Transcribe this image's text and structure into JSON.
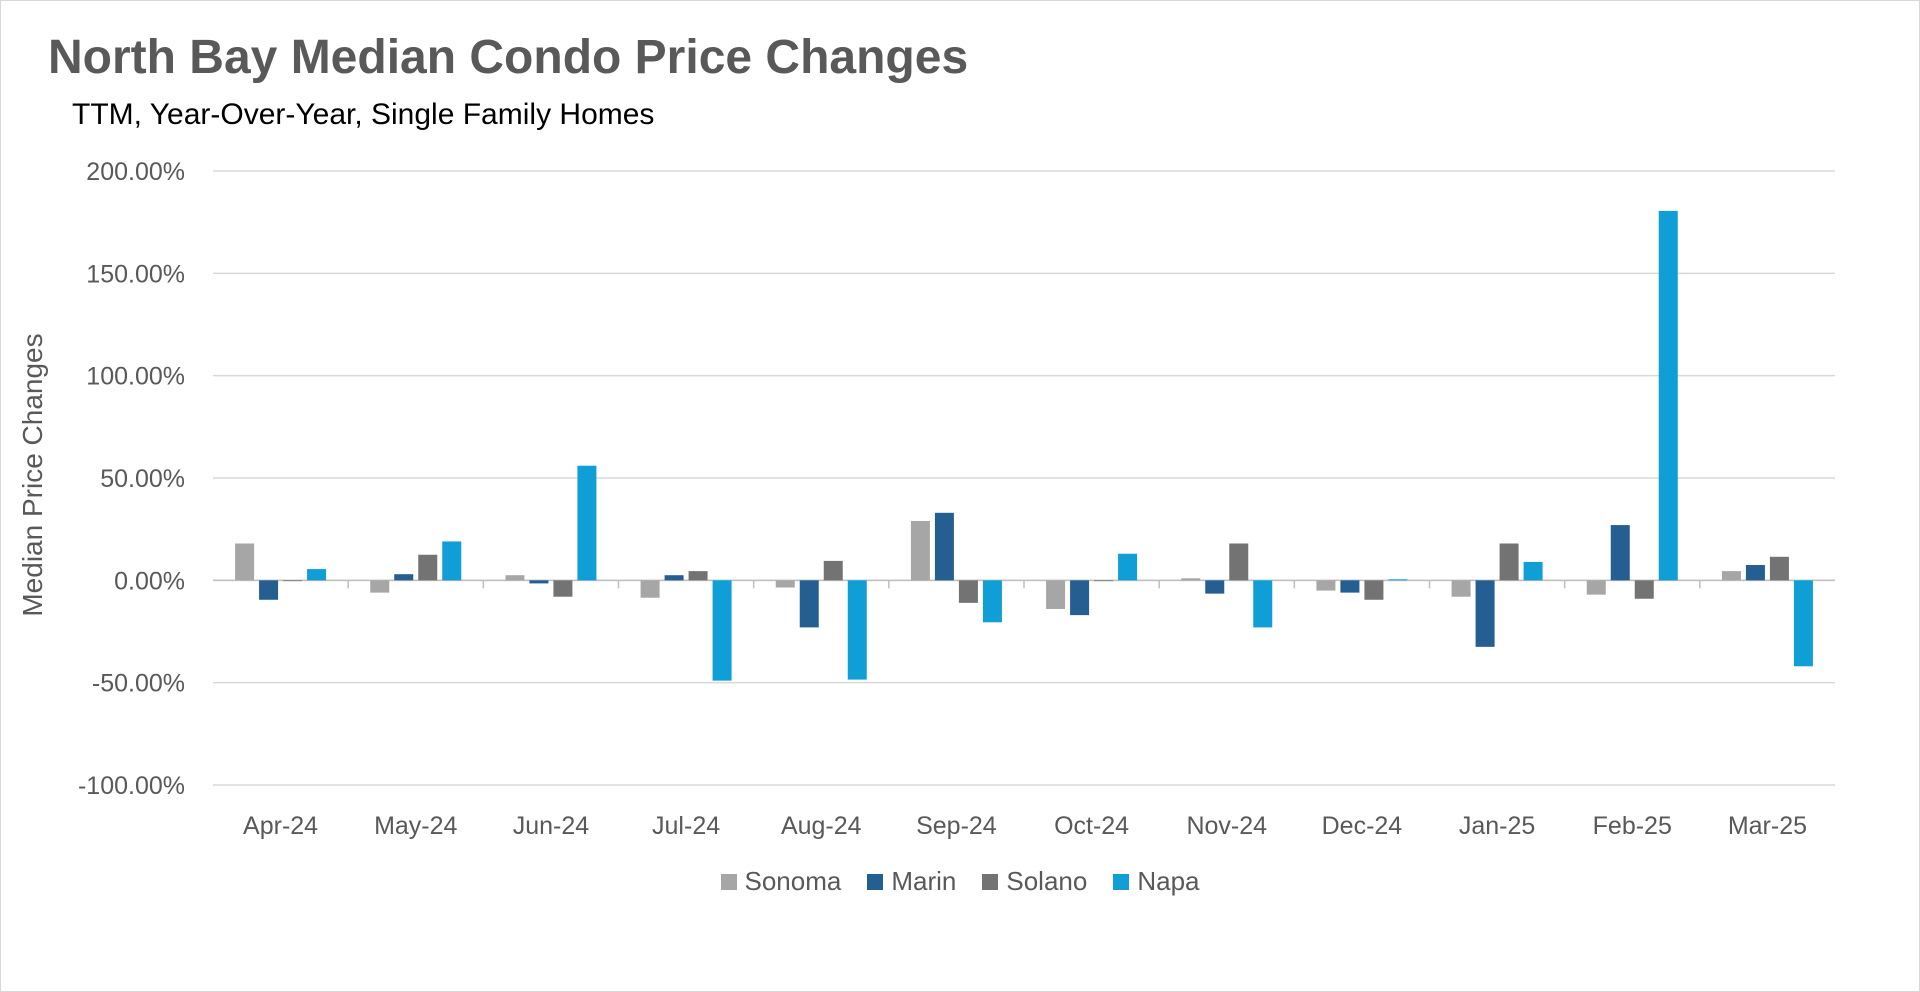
{
  "chart_data": {
    "type": "bar",
    "title": "North Bay Median Condo Price Changes",
    "subtitle": "TTM, Year-Over-Year, Single Family Homes",
    "ylabel": "Median Price Changes",
    "xlabel": "",
    "ylim": [
      -100,
      200
    ],
    "yticks": [
      "200.00%",
      "150.00%",
      "100.00%",
      "50.00%",
      "0.00%",
      "-50.00%",
      "-100.00%"
    ],
    "ytick_values": [
      200,
      150,
      100,
      50,
      0,
      -50,
      -100
    ],
    "grid": true,
    "legend_position": "bottom",
    "categories": [
      "Apr-24",
      "May-24",
      "Jun-24",
      "Jul-24",
      "Aug-24",
      "Sep-24",
      "Oct-24",
      "Nov-24",
      "Dec-24",
      "Jan-25",
      "Feb-25",
      "Mar-25"
    ],
    "series": [
      {
        "name": "Sonoma",
        "color": "#a6a6a6",
        "values": [
          18,
          -6,
          2.5,
          -8.5,
          -3.5,
          29,
          -14,
          1,
          -5,
          -8,
          -7,
          4.5
        ]
      },
      {
        "name": "Marin",
        "color": "#255e91",
        "values": [
          -9.5,
          3,
          -1.5,
          2.5,
          -23,
          33,
          -17,
          -6.5,
          -6,
          -32.5,
          27,
          7.5
        ]
      },
      {
        "name": "Solano",
        "color": "#737373",
        "values": [
          0,
          12.5,
          -8,
          4.5,
          9.5,
          -11,
          0,
          18,
          -9.5,
          18,
          -9,
          11.5
        ]
      },
      {
        "name": "Napa",
        "color": "#0f9ed5",
        "values": [
          5.5,
          19,
          56,
          -49,
          -48.5,
          -20.5,
          13,
          -23,
          0.5,
          9,
          180.5,
          -42
        ]
      }
    ]
  }
}
